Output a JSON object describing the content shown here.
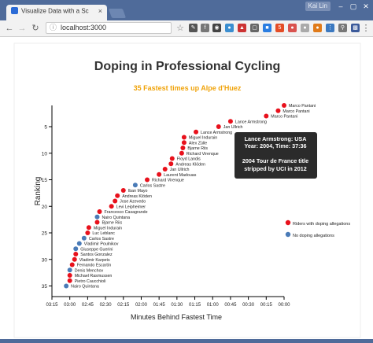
{
  "browser": {
    "tab_title": "Visualize Data with a Sc",
    "tab_close": "×",
    "user_label": "Kai Lin",
    "window_controls": {
      "minimize": "–",
      "maximize": "▢",
      "close": "✕"
    },
    "url": "localhost:3000",
    "icons": [
      "back-icon",
      "forward-icon",
      "reload-icon",
      "star-icon",
      "extension-icons",
      "menu-icon"
    ]
  },
  "chart": {
    "title": "Doping in Professional Cycling",
    "subtitle": "35 Fastest times up Alpe d'Huez",
    "xlabel": "Minutes Behind Fastest Time",
    "ylabel": "Ranking",
    "legend": {
      "doping": "Riders with doping allegations",
      "no_doping": "No doping allegations"
    },
    "tooltip": {
      "line1": "Lance Armstrong: USA",
      "line2": "Year: 2004, Time: 37:36",
      "line3": "2004 Tour de France title",
      "line4": "stripped by UCI in 2012"
    },
    "colors": {
      "doping": "#e8111c",
      "no_doping": "#4a7bb7",
      "title_sub": "#f0a30a",
      "tooltip_bg": "#2b2b2b"
    }
  },
  "chart_data": {
    "type": "scatter",
    "title": "Doping in Professional Cycling",
    "subtitle": "35 Fastest times up Alpe d'Huez",
    "xlabel": "Minutes Behind Fastest Time",
    "ylabel": "Ranking",
    "xlim": [
      "3:15",
      "0:00"
    ],
    "x_ticks": [
      "03:15",
      "03:00",
      "02:45",
      "02:30",
      "02:15",
      "02:00",
      "01:45",
      "01:30",
      "01:15",
      "01:00",
      "00:45",
      "00:30",
      "00:15",
      "00:00"
    ],
    "ylim": [
      1,
      37
    ],
    "y_ticks": [
      5,
      10,
      15,
      20,
      25,
      30,
      35
    ],
    "legend_position": "right",
    "points": [
      {
        "rank": 1,
        "name": "Marco Pantani",
        "seconds_behind": 0,
        "doping": true
      },
      {
        "rank": 2,
        "name": "Marco Pantani",
        "seconds_behind": 5,
        "doping": true
      },
      {
        "rank": 3,
        "name": "Marco Pantani",
        "seconds_behind": 15,
        "doping": true
      },
      {
        "rank": 4,
        "name": "Lance Armstrong",
        "seconds_behind": 45,
        "doping": true
      },
      {
        "rank": 5,
        "name": "Jan Ullrich",
        "seconds_behind": 55,
        "doping": true
      },
      {
        "rank": 6,
        "name": "Lance Armstrong",
        "seconds_behind": 74,
        "doping": true
      },
      {
        "rank": 7,
        "name": "Miguel Indurain",
        "seconds_behind": 84,
        "doping": true
      },
      {
        "rank": 8,
        "name": "Alex Zülle",
        "seconds_behind": 84,
        "doping": true
      },
      {
        "rank": 9,
        "name": "Bjarne Riis",
        "seconds_behind": 85,
        "doping": true
      },
      {
        "rank": 10,
        "name": "Richard Virenque",
        "seconds_behind": 86,
        "doping": true
      },
      {
        "rank": 11,
        "name": "Floyd Landis",
        "seconds_behind": 94,
        "doping": true
      },
      {
        "rank": 12,
        "name": "Andreas Klöden",
        "seconds_behind": 95,
        "doping": true
      },
      {
        "rank": 13,
        "name": "Jan Ullrich",
        "seconds_behind": 100,
        "doping": true
      },
      {
        "rank": 14,
        "name": "Laurent Madouas",
        "seconds_behind": 105,
        "doping": true
      },
      {
        "rank": 15,
        "name": "Richard Virenque",
        "seconds_behind": 115,
        "doping": true
      },
      {
        "rank": 16,
        "name": "Carlos Sastre",
        "seconds_behind": 125,
        "doping": false
      },
      {
        "rank": 17,
        "name": "Iban Mayo",
        "seconds_behind": 135,
        "doping": true
      },
      {
        "rank": 18,
        "name": "Andreas Klöden",
        "seconds_behind": 140,
        "doping": true
      },
      {
        "rank": 19,
        "name": "Jose Azevedo",
        "seconds_behind": 142,
        "doping": true
      },
      {
        "rank": 20,
        "name": "Levi Leipheimer",
        "seconds_behind": 145,
        "doping": true
      },
      {
        "rank": 21,
        "name": "Francesco Casagrande",
        "seconds_behind": 155,
        "doping": true
      },
      {
        "rank": 22,
        "name": "Nairo Quintana",
        "seconds_behind": 157,
        "doping": false
      },
      {
        "rank": 23,
        "name": "Bjarne Riis",
        "seconds_behind": 157,
        "doping": true
      },
      {
        "rank": 24,
        "name": "Miguel Indurain",
        "seconds_behind": 164,
        "doping": true
      },
      {
        "rank": 25,
        "name": "Luc Leblanc",
        "seconds_behind": 165,
        "doping": true
      },
      {
        "rank": 26,
        "name": "Carlos Sastre",
        "seconds_behind": 168,
        "doping": false
      },
      {
        "rank": 27,
        "name": "Vladimir Poulnikov",
        "seconds_behind": 172,
        "doping": false
      },
      {
        "rank": 28,
        "name": "Giuseppe Guerini",
        "seconds_behind": 175,
        "doping": false
      },
      {
        "rank": 29,
        "name": "Santos Gonzalez",
        "seconds_behind": 175,
        "doping": true
      },
      {
        "rank": 30,
        "name": "Vladimir Karpets",
        "seconds_behind": 176,
        "doping": true
      },
      {
        "rank": 31,
        "name": "Fernando Escartín",
        "seconds_behind": 178,
        "doping": true
      },
      {
        "rank": 32,
        "name": "Denis Menchov",
        "seconds_behind": 180,
        "doping": false
      },
      {
        "rank": 33,
        "name": "Michael Rasmussen",
        "seconds_behind": 180,
        "doping": true
      },
      {
        "rank": 34,
        "name": "Pietro Caucchioli",
        "seconds_behind": 180,
        "doping": true
      },
      {
        "rank": 35,
        "name": "Nairo Quintana",
        "seconds_behind": 183,
        "doping": false
      }
    ]
  }
}
